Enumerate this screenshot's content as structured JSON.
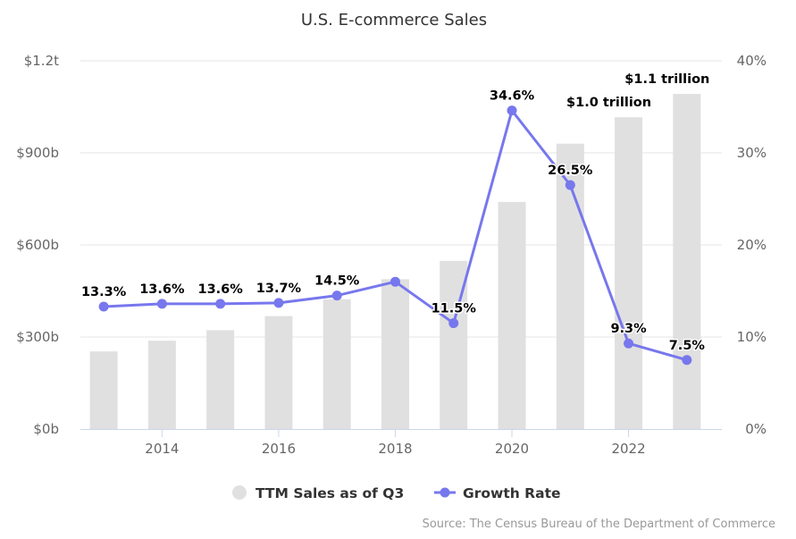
{
  "chart_data": {
    "type": "bar",
    "title": "U.S. E-commerce Sales",
    "x": [
      2013,
      2014,
      2015,
      2016,
      2017,
      2018,
      2019,
      2020,
      2021,
      2022,
      2023
    ],
    "x_ticks": [
      2014,
      2016,
      2018,
      2020,
      2022
    ],
    "xlabel": "",
    "series": [
      {
        "name": "TTM Sales as of Q3",
        "type": "bar",
        "axis": "left",
        "unit": "billion USD",
        "color": "#e0e0e0",
        "values": [
          253,
          288,
          322,
          368,
          423,
          488,
          548,
          740,
          930,
          1016,
          1092
        ],
        "data_labels": [
          "",
          "",
          "",
          "",
          "",
          "",
          "",
          "",
          "",
          "$1.0 trillion",
          "$1.1 trillion"
        ]
      },
      {
        "name": "Growth Rate",
        "type": "line",
        "axis": "right",
        "unit": "percent",
        "color": "#7777ee",
        "values": [
          13.3,
          13.6,
          13.6,
          13.7,
          14.5,
          16.0,
          11.5,
          34.6,
          26.5,
          9.3,
          7.5
        ],
        "data_labels": [
          "13.3%",
          "13.6%",
          "13.6%",
          "13.7%",
          "14.5%",
          "",
          "11.5%",
          "34.6%",
          "26.5%",
          "9.3%",
          "7.5%"
        ]
      }
    ],
    "y_left": {
      "ylim": [
        0,
        1200
      ],
      "ticks": [
        0,
        300,
        600,
        900,
        1200
      ],
      "tick_labels": [
        "$0b",
        "$300b",
        "$600b",
        "$900b",
        "$1.2t"
      ]
    },
    "y_right": {
      "ylim": [
        0,
        40
      ],
      "ticks": [
        0,
        10,
        20,
        30,
        40
      ],
      "tick_labels": [
        "0%",
        "10%",
        "20%",
        "30%",
        "40%"
      ]
    },
    "grid": true,
    "legend": {
      "position": "bottom-center",
      "items": [
        "TTM Sales as of Q3",
        "Growth Rate"
      ]
    },
    "source": "Source: The Census Bureau of the Department of Commerce"
  }
}
